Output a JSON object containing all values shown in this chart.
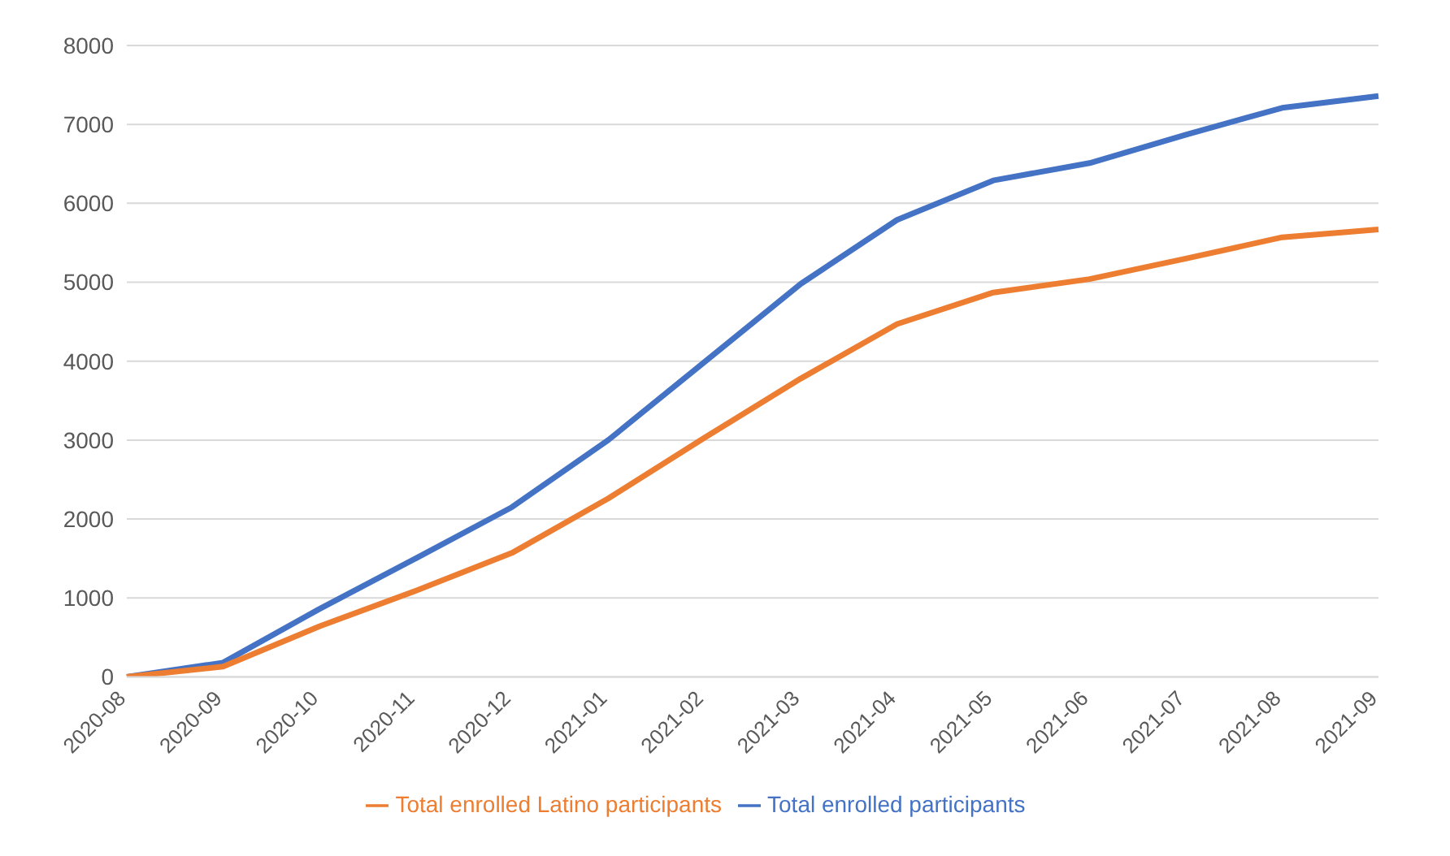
{
  "chart_data": {
    "type": "line",
    "categories": [
      "2020-08",
      "2020-09",
      "2020-10",
      "2020-11",
      "2020-12",
      "2021-01",
      "2021-02",
      "2021-03",
      "2021-04",
      "2021-05",
      "2021-06",
      "2021-07",
      "2021-08",
      "2021-09"
    ],
    "series": [
      {
        "name": "Total enrolled participants",
        "color": "#4472c4",
        "values": [
          0,
          180,
          860,
          1500,
          2150,
          3000,
          3990,
          4980,
          5790,
          6290,
          6510,
          6870,
          7210,
          7360
        ]
      },
      {
        "name": "Total enrolled Latino participants",
        "color": "#ed7d31",
        "values": [
          0,
          130,
          640,
          1090,
          1570,
          2260,
          3030,
          3780,
          4470,
          4870,
          5040,
          5300,
          5570,
          5670
        ]
      }
    ],
    "ylim": [
      0,
      8000
    ],
    "yticks": [
      0,
      1000,
      2000,
      3000,
      4000,
      5000,
      6000,
      7000,
      8000
    ],
    "grid": "y",
    "legend": "bottom",
    "marker": "none",
    "line_style": "solid"
  }
}
